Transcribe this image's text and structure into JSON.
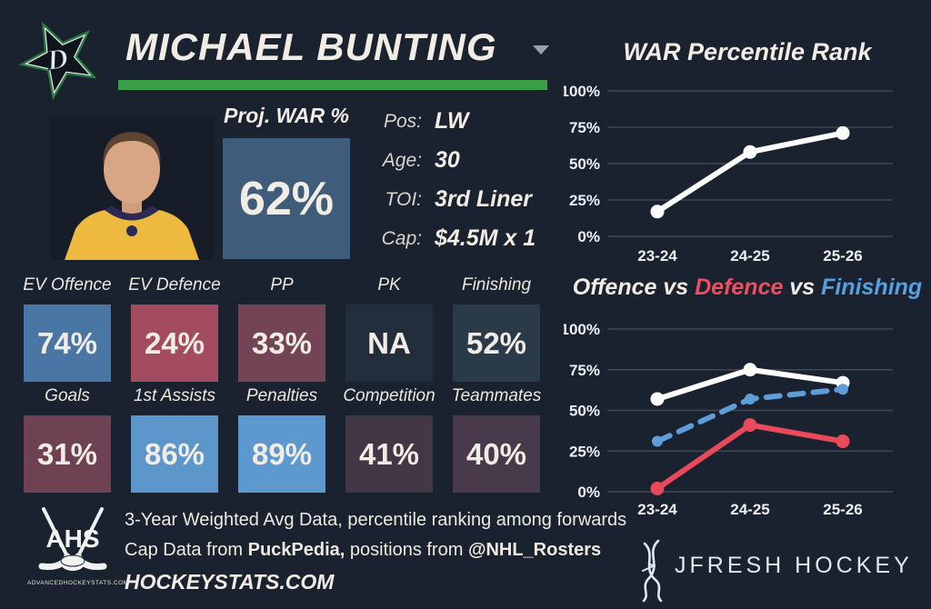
{
  "team": {
    "name": "Dallas Stars"
  },
  "header": {
    "player_name": "MICHAEL BUNTING"
  },
  "war": {
    "label": "Proj. WAR %",
    "value": "62%"
  },
  "info": [
    {
      "label": "Pos:",
      "value": "LW"
    },
    {
      "label": "Age:",
      "value": "30"
    },
    {
      "label": "TOI:",
      "value": "3rd Liner"
    },
    {
      "label": "Cap:",
      "value": "$4.5M x 1"
    }
  ],
  "stats": {
    "row1": [
      {
        "label": "EV Offence",
        "value": "74%",
        "color": "#4a76a6"
      },
      {
        "label": "EV Defence",
        "value": "24%",
        "color": "#a34c61"
      },
      {
        "label": "PP",
        "value": "33%",
        "color": "#724456"
      },
      {
        "label": "PK",
        "value": "NA",
        "color": "#222e3c"
      },
      {
        "label": "Finishing",
        "value": "52%",
        "color": "#2a3a49"
      }
    ],
    "row2": [
      {
        "label": "Goals",
        "value": "31%",
        "color": "#6e4153"
      },
      {
        "label": "1st Assists",
        "value": "86%",
        "color": "#5d96cb"
      },
      {
        "label": "Penalties",
        "value": "89%",
        "color": "#5d99ce"
      },
      {
        "label": "Competition",
        "value": "41%",
        "color": "#433645"
      },
      {
        "label": "Teammates",
        "value": "40%",
        "color": "#483a4a"
      }
    ]
  },
  "chart_data": [
    {
      "type": "line",
      "title": "WAR Percentile Rank",
      "x": [
        "23-24",
        "24-25",
        "25-26"
      ],
      "series": [
        {
          "name": "WAR Percentile",
          "values": [
            17,
            58,
            71
          ],
          "color": "#ffffff",
          "dashed": false
        }
      ],
      "ylim": [
        0,
        100
      ],
      "yticks": [
        "0%",
        "25%",
        "50%",
        "75%",
        "100%"
      ],
      "grid": true,
      "legend_position": "none"
    },
    {
      "type": "line",
      "title_parts": [
        {
          "text": "Offence",
          "color": "#f2ede4"
        },
        {
          "text": " vs ",
          "color": "#f2ede4"
        },
        {
          "text": "Defence",
          "color": "#ee4f60"
        },
        {
          "text": " vs ",
          "color": "#f2ede4"
        },
        {
          "text": "Finishing",
          "color": "#56a0e0"
        }
      ],
      "x": [
        "23-24",
        "24-25",
        "25-26"
      ],
      "series": [
        {
          "name": "Offence",
          "values": [
            57,
            75,
            67
          ],
          "color": "#ffffff",
          "dashed": false
        },
        {
          "name": "Finishing",
          "values": [
            31,
            57,
            63
          ],
          "color": "#5d9ed9",
          "dashed": true
        },
        {
          "name": "Defence",
          "values": [
            2,
            41,
            31
          ],
          "color": "#e84a5c",
          "dashed": false
        }
      ],
      "ylim": [
        0,
        100
      ],
      "yticks": [
        "0%",
        "25%",
        "50%",
        "75%",
        "100%"
      ],
      "grid": true,
      "legend_position": "title"
    }
  ],
  "footer": {
    "ahs_acronym": "AHS",
    "ahs_site": "ADVANCEDHOCKEYSTATS.COM",
    "line1": "3-Year Weighted Avg Data, percentile ranking among forwards",
    "line2_parts": [
      {
        "text": "Cap Data from "
      },
      {
        "text": "PuckPedia,",
        "bold": true
      },
      {
        "text": " positions from "
      },
      {
        "text": "@NHL_Rosters",
        "bold": true
      }
    ],
    "site": "HOCKEYSTATS.COM",
    "jfresh": "JFRESH HOCKEY"
  },
  "colors": {
    "background": "#1a2230",
    "cream_text": "#f2ede4",
    "accent_green": "#389f46",
    "war_box": "#3f5d7a",
    "chart_grid": "#3e4855",
    "defence_red": "#e84a5c",
    "finishing_blue": "#5d9ed9"
  }
}
